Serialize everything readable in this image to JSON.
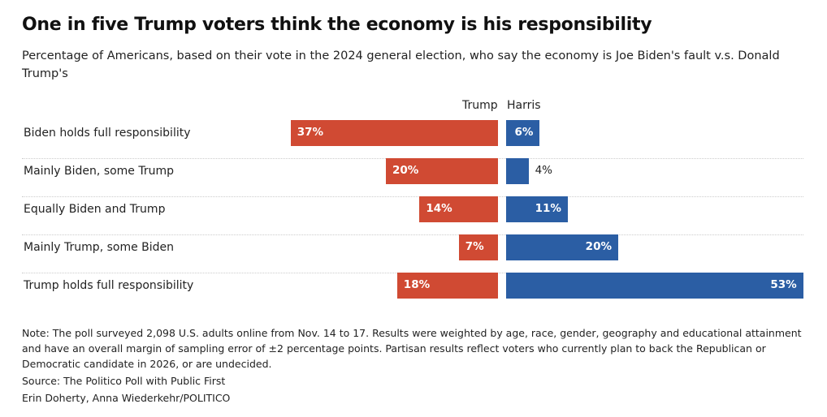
{
  "chart_data": {
    "type": "bar",
    "title": "One in five Trump voters think the economy is his responsibility",
    "subtitle": "Percentage of Americans, based on their vote in the 2024 general election, who say the economy is Joe Biden's fault v.s. Donald Trump's",
    "categories": [
      "Biden holds full responsibility",
      "Mainly Biden, some Trump",
      "Equally Biden and Trump",
      "Mainly Trump, some Biden",
      "Trump holds full responsibility"
    ],
    "series": [
      {
        "name": "Trump",
        "color": "#d04a33",
        "values": [
          37,
          20,
          14,
          7,
          18
        ],
        "labels": [
          "37%",
          "20%",
          "14%",
          "7%",
          "18%"
        ]
      },
      {
        "name": "Harris",
        "color": "#2b5ea4",
        "values": [
          6,
          4,
          11,
          20,
          53
        ],
        "labels": [
          "6%",
          "4%",
          "11%",
          "20%",
          "53%"
        ]
      }
    ]
  },
  "notes": {
    "note": "Note: The poll surveyed 2,098 U.S. adults online from Nov. 14 to 17. Results were weighted by age, race, gender, geography and educational attainment and have an overall margin of sampling error of ±2 percentage points. Partisan results reflect voters who currently plan to back the Republican or Democratic candidate in 2026, or are undecided.",
    "source": "Source: The Politico Poll with Public First",
    "credit": "Erin Doherty, Anna Wiederkehr/POLITICO"
  }
}
